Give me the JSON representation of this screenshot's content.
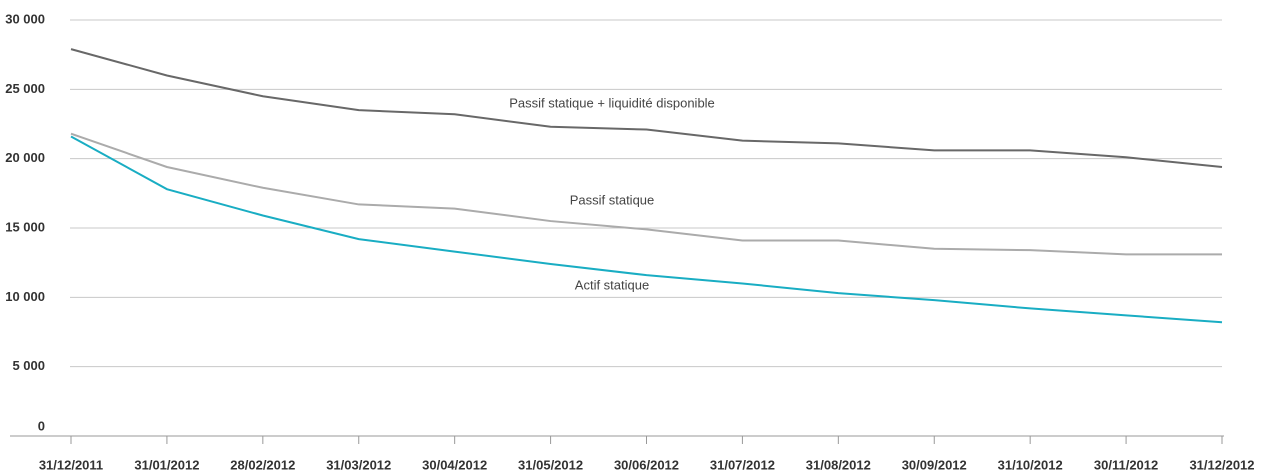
{
  "chart_data": {
    "type": "line",
    "categories": [
      "31/12/2011",
      "31/01/2012",
      "28/02/2012",
      "31/03/2012",
      "30/04/2012",
      "31/05/2012",
      "30/06/2012",
      "31/07/2012",
      "31/08/2012",
      "30/09/2012",
      "31/10/2012",
      "30/11/2012",
      "31/12/2012"
    ],
    "series": [
      {
        "name": "Passif statique + liquidité disponible",
        "color": "#686868",
        "values": [
          27900,
          26000,
          24500,
          23500,
          23200,
          22300,
          22100,
          21300,
          21100,
          20600,
          20600,
          20100,
          19400
        ]
      },
      {
        "name": "Passif statique",
        "color": "#ababab",
        "values": [
          21800,
          19400,
          17900,
          16700,
          16400,
          15500,
          14900,
          14100,
          14100,
          13500,
          13400,
          13100,
          13100
        ]
      },
      {
        "name": "Actif statique",
        "color": "#19adc3",
        "values": [
          21600,
          17800,
          15900,
          14200,
          13300,
          12400,
          11600,
          11000,
          10300,
          9800,
          9200,
          8700,
          8200
        ]
      }
    ],
    "ylim": [
      0,
      30000
    ],
    "yticks": [
      0,
      {
        "value": 5000,
        "label": "5 000"
      },
      {
        "value": 10000,
        "label": "10 000"
      },
      {
        "value": 15000,
        "label": "15 000"
      },
      {
        "value": 20000,
        "label": "20 000"
      },
      {
        "value": 25000,
        "label": "25 000"
      },
      {
        "value": 30000,
        "label": "30 000"
      }
    ],
    "grid": true
  }
}
